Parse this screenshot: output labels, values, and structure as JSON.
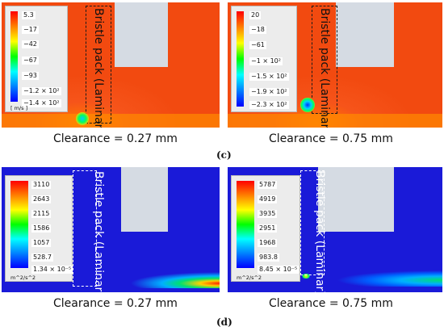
{
  "velocity": {
    "panel_label": "(c)",
    "unit": "[ m/s ]",
    "bristle_label": "Bristle pack (Laminar)",
    "left": {
      "ticks": [
        "5.3",
        "−17",
        "−42",
        "−67",
        "−93",
        "−1.2 × 10²",
        "−1.4 × 10²"
      ],
      "caption": "Clearance = 0.27 mm"
    },
    "right": {
      "ticks": [
        "20",
        "−18",
        "−61",
        "−1 × 10²",
        "−1.5 × 10²",
        "−1.9 × 10²",
        "−2.3 × 10²"
      ],
      "caption": "Clearance = 0.75 mm"
    }
  },
  "turbulence": {
    "panel_label": "(d)",
    "unit": "m^2/s^2",
    "bristle_label": "Bristle pack (Laminar)",
    "left": {
      "ticks": [
        "3110",
        "2643",
        "2115",
        "1586",
        "1057",
        "528.7",
        "1.34 × 10⁻⁵"
      ],
      "caption": "Clearance = 0.27 mm"
    },
    "right": {
      "ticks": [
        "5787",
        "4919",
        "3935",
        "2951",
        "1968",
        "983.8",
        "8.45 × 10⁻⁵"
      ],
      "caption": "Clearance = 0.75 mm"
    }
  },
  "colors": {
    "velocity_field": "#f24a10",
    "turbulence_field": "#1a1ad8",
    "rotor": "#d5dbe3"
  }
}
